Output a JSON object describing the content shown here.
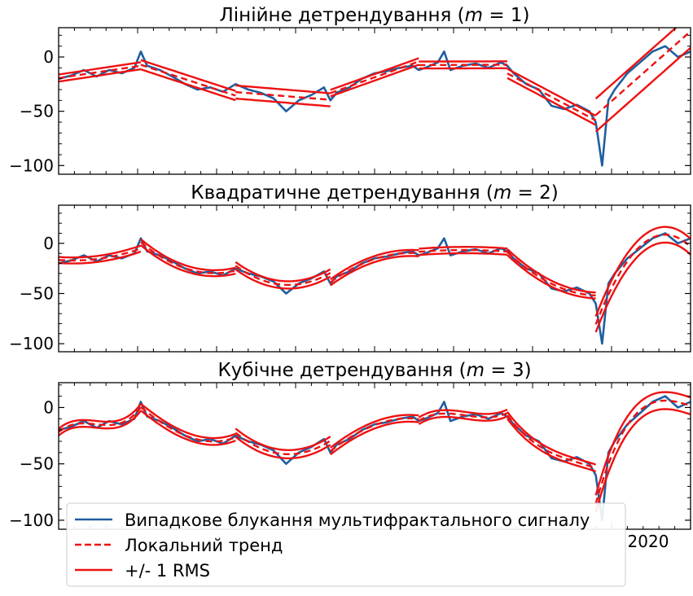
{
  "chart_data": [
    {
      "type": "line",
      "title": "Лінійне детрендування (m = 1)",
      "title_text": "Лінійне детрендування (",
      "title_var": "m",
      "title_eq": " = 1)",
      "xlabel": "",
      "ylabel": "",
      "ylim": [
        -108,
        27
      ],
      "yticks": [
        0,
        -50,
        -100
      ],
      "ytick_labels": [
        "0",
        "−50",
        "−100"
      ],
      "grid": false,
      "degree": 1
    },
    {
      "type": "line",
      "title": "Квадратичне детрендування (m = 2)",
      "title_text": "Квадратичне детрендування (",
      "title_var": "m",
      "title_eq": " = 2)",
      "xlabel": "",
      "ylabel": "",
      "ylim": [
        -108,
        38
      ],
      "yticks": [
        0,
        -50,
        -100
      ],
      "ytick_labels": [
        "0",
        "−50",
        "−100"
      ],
      "grid": false,
      "degree": 2
    },
    {
      "type": "line",
      "title": "Кубічне детрендування (m = 3)",
      "title_text": "Кубічне детрендування (",
      "title_var": "m",
      "title_eq": " = 3)",
      "xlabel": "",
      "ylabel": "",
      "ylim": [
        -108,
        22
      ],
      "yticks": [
        0,
        -50,
        -100
      ],
      "ytick_labels": [
        "0",
        "−50",
        "−100"
      ],
      "xtick_visible_label": "2020",
      "grid": false,
      "degree": 3
    }
  ],
  "shared_x": {
    "range": [
      0,
      100
    ],
    "segment_bounds": [
      0,
      13,
      28,
      43,
      57,
      71,
      85,
      100
    ]
  },
  "signal": {
    "name": "Випадкове блукання мультифрактального сигналу",
    "color": "#1f5fa0",
    "x": [
      0,
      2,
      4,
      6,
      8,
      10,
      12,
      13,
      14,
      16,
      18,
      20,
      22,
      24,
      26,
      28,
      30,
      32,
      34,
      36,
      38,
      40,
      42,
      43,
      44,
      46,
      48,
      50,
      52,
      54,
      56,
      57,
      58,
      60,
      61,
      62,
      64,
      66,
      68,
      70,
      71,
      72,
      74,
      76,
      78,
      80,
      82,
      84,
      85,
      86,
      87,
      88,
      90,
      92,
      94,
      96,
      98,
      100
    ],
    "y": [
      -20,
      -17,
      -12,
      -18,
      -12,
      -15,
      -10,
      5,
      -8,
      -12,
      -18,
      -25,
      -30,
      -28,
      -32,
      -25,
      -30,
      -33,
      -38,
      -50,
      -40,
      -35,
      -28,
      -40,
      -33,
      -28,
      -20,
      -15,
      -13,
      -10,
      -8,
      -12,
      -10,
      -5,
      5,
      -12,
      -8,
      -6,
      -10,
      -5,
      -8,
      -15,
      -25,
      -30,
      -45,
      -48,
      -44,
      -50,
      -60,
      -100,
      -40,
      -30,
      -15,
      -5,
      5,
      10,
      0,
      5
    ]
  },
  "legend": {
    "placement": "lower-left",
    "entries": [
      {
        "label": "Випадкове блукання мультифрактального сигналу",
        "color": "#1f5fa0",
        "style": "solid"
      },
      {
        "label": "Локальний тренд",
        "color": "#ee1111",
        "style": "dashed"
      },
      {
        "label": "+/- 1 RMS",
        "color": "#ee1111",
        "style": "solid"
      }
    ]
  },
  "colors": {
    "signal": "#1f5fa0",
    "trend": "#ee1111",
    "axis": "#000000"
  }
}
